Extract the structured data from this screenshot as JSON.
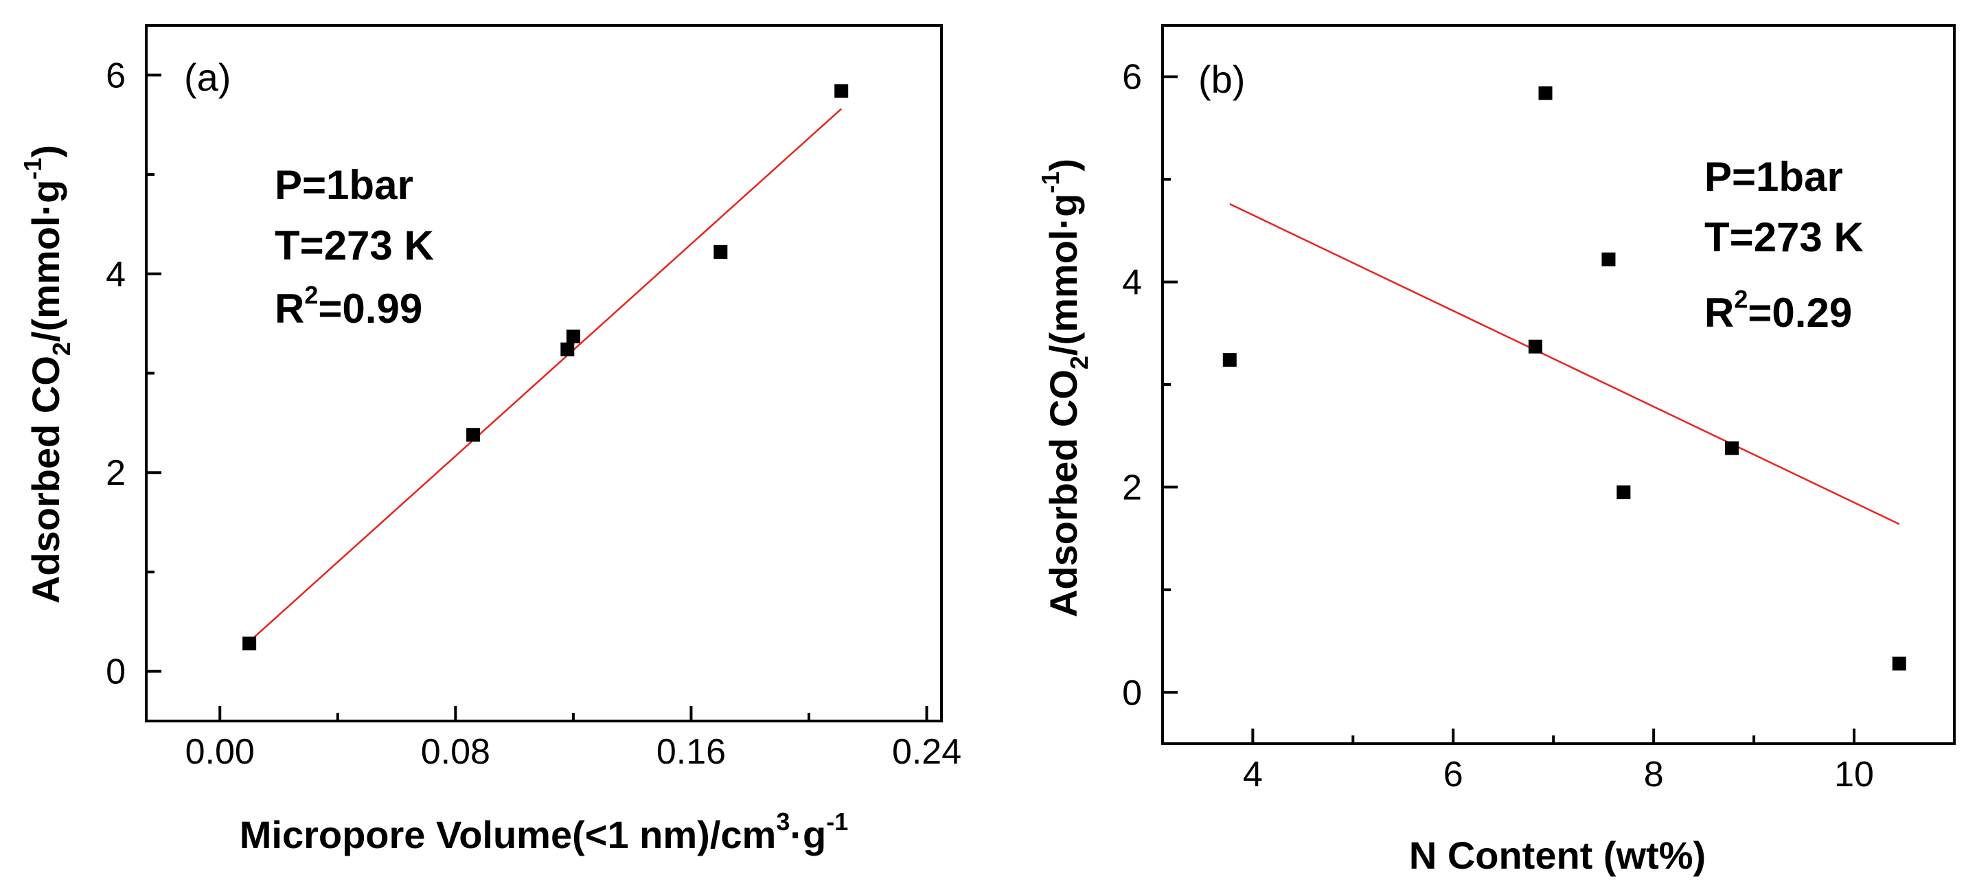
{
  "chart_data": [
    {
      "type": "scatter",
      "panel_label": "(a)",
      "xlabel": "Micropore Volume(<1 nm)/cm³·g⁻¹",
      "xlabel_parts": {
        "main": "Micropore Volume(<1 nm)/cm",
        "sup1": "3",
        "mid": "·g",
        "sup2": "-1"
      },
      "ylabel": "Adsorbed CO₂/(mmol·g⁻¹)",
      "ylabel_parts": {
        "main": "Adsorbed CO",
        "sub": "2",
        "mid": "/(mmol·g",
        "sup": "-1",
        "end": ")"
      },
      "xlim": [
        -0.025,
        0.245
      ],
      "ylim": [
        -0.5,
        6.5
      ],
      "xticks": [
        0.0,
        0.08,
        0.16,
        0.24
      ],
      "xtick_labels": [
        "0.00",
        "0.08",
        "0.16",
        "0.24"
      ],
      "yticks": [
        0,
        2,
        4,
        6
      ],
      "ytick_labels": [
        "0",
        "2",
        "4",
        "6"
      ],
      "x_minor": [
        0.04,
        0.12,
        0.2
      ],
      "y_minor": [
        1,
        3,
        5
      ],
      "points": [
        {
          "x": 0.01,
          "y": 0.28
        },
        {
          "x": 0.086,
          "y": 2.38
        },
        {
          "x": 0.118,
          "y": 3.24
        },
        {
          "x": 0.12,
          "y": 3.37
        },
        {
          "x": 0.17,
          "y": 4.22
        },
        {
          "x": 0.211,
          "y": 5.84
        }
      ],
      "fit_line": {
        "x1": 0.01,
        "y1": 0.3,
        "x2": 0.211,
        "y2": 5.66
      },
      "annotations": {
        "pressure": "P=1bar",
        "temperature": "T=273 K",
        "r2_prefix": "R",
        "r2_sup": "2",
        "r2_value": "=0.99"
      }
    },
    {
      "type": "scatter",
      "panel_label": "(b)",
      "xlabel": "N Content (wt%)",
      "ylabel": "Adsorbed CO₂/(mmol·g⁻¹)",
      "ylabel_parts": {
        "main": "Adsorbed CO",
        "sub": "2",
        "mid": "/(mmol·g",
        "sup": "-1",
        "end": ")"
      },
      "xlim": [
        3.1,
        11.0
      ],
      "ylim": [
        -0.5,
        6.5
      ],
      "xticks": [
        4,
        6,
        8,
        10
      ],
      "xtick_labels": [
        "4",
        "6",
        "8",
        "10"
      ],
      "yticks": [
        0,
        2,
        4,
        6
      ],
      "ytick_labels": [
        "0",
        "2",
        "4",
        "6"
      ],
      "x_minor": [
        5,
        7,
        9
      ],
      "y_minor": [
        1,
        3,
        5
      ],
      "points": [
        {
          "x": 3.77,
          "y": 3.24
        },
        {
          "x": 6.82,
          "y": 3.37
        },
        {
          "x": 6.92,
          "y": 5.84
        },
        {
          "x": 7.55,
          "y": 4.22
        },
        {
          "x": 7.7,
          "y": 1.95
        },
        {
          "x": 8.78,
          "y": 2.38
        },
        {
          "x": 10.45,
          "y": 0.28
        }
      ],
      "fit_line": {
        "x1": 3.77,
        "y1": 4.76,
        "x2": 10.45,
        "y2": 1.64
      },
      "annotations": {
        "pressure": "P=1bar",
        "temperature": "T=273 K",
        "r2_prefix": "R",
        "r2_sup": "2",
        "r2_value": "=0.29"
      }
    }
  ]
}
